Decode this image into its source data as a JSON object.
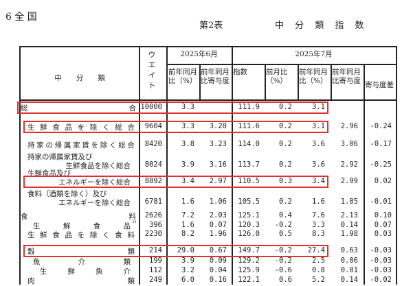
{
  "section": "6 全 国",
  "table_no": "第2表",
  "table_title": "中 分 類 指 数",
  "headers": {
    "category": "中　　分　　類",
    "weight": "ウエイト",
    "june": "2025年6月",
    "july": "2025年7月",
    "june_yoy": "前年同月比（%）",
    "june_contrib": "前年同月比寄与度",
    "index": "指数",
    "mom": "前月比（%）",
    "yoy": "前年同月比（%）",
    "contrib": "前年同月比寄与度",
    "diff": "寄与度差"
  },
  "rows": [
    {
      "label": [
        "総合"
      ],
      "style": "j0",
      "values": [
        "10000",
        "3.3",
        "",
        "111.9",
        "0.2",
        "3.1",
        "",
        ""
      ],
      "highlight": true
    },
    {
      "label": [
        "生鮮食品を除く総合"
      ],
      "style": "j1",
      "values": [
        "9604",
        "3.3",
        "3.20",
        "111.6",
        "0.2",
        "3.1",
        "2.96",
        "-0.24"
      ],
      "highlight": true
    },
    {
      "label": [
        "持家の帰属家賃を除く総合"
      ],
      "style": "j1",
      "values": [
        "8420",
        "3.8",
        "3.23",
        "114.0",
        "0.2",
        "3.6",
        "3.06",
        "-0.17"
      ]
    },
    {
      "label": [
        "持家の帰属家賃及び",
        "生鮮食品を除く総合"
      ],
      "style": "two",
      "values": [
        "8024",
        "3.9",
        "3.16",
        "113.7",
        "0.2",
        "3.6",
        "2.92",
        "-0.25"
      ]
    },
    {
      "label": [
        "生鮮食品及び",
        "エネルギーを除く総合"
      ],
      "style": "two",
      "values": [
        "8892",
        "3.4",
        "2.97",
        "110.5",
        "0.3",
        "3.4",
        "2.99",
        "0.02"
      ],
      "highlight": true
    },
    {
      "label": [
        "食料（酒類を除く）及び",
        "エネルギーを除く総合"
      ],
      "style": "two",
      "values": [
        "6781",
        "1.6",
        "1.06",
        "105.5",
        "0.2",
        "1.6",
        "1.05",
        "-0.01"
      ]
    },
    {
      "label": [
        "食料"
      ],
      "style": "j0",
      "values": [
        "2626",
        "7.2",
        "2.03",
        "125.1",
        "0.4",
        "7.6",
        "2.13",
        "0.10"
      ]
    },
    {
      "label": [
        "生鮮食品"
      ],
      "style": "j2",
      "note": "1)",
      "values": [
        "396",
        "1.6",
        "0.07",
        "120.3",
        "-0.2",
        "3.3",
        "0.14",
        "0.07"
      ]
    },
    {
      "label": [
        "生鮮食品を除く食料"
      ],
      "style": "j1",
      "values": [
        "2230",
        "8.2",
        "1.96",
        "126.0",
        "0.5",
        "8.3",
        "1.98",
        "0.03"
      ]
    },
    {
      "label": [
        "穀類"
      ],
      "style": "j1",
      "values": [
        "214",
        "29.0",
        "0.67",
        "149.7",
        "-0.2",
        "27.4",
        "0.63",
        "-0.03"
      ],
      "highlight": true
    },
    {
      "label": [
        "魚介類"
      ],
      "style": "j2",
      "values": [
        "199",
        "3.9",
        "0.09",
        "129.2",
        "-0.2",
        "2.5",
        "0.06",
        "-0.03"
      ]
    },
    {
      "label": [
        "生鮮魚介"
      ],
      "style": "j3",
      "values": [
        "112",
        "3.2",
        "0.04",
        "125.9",
        "-0.6",
        "0.8",
        "0.01",
        "-0.03"
      ]
    },
    {
      "label": [
        "肉類"
      ],
      "style": "j1",
      "values": [
        "249",
        "6.0",
        "0.16",
        "122.1",
        "0.6",
        "5.2",
        "0.14",
        "-0.02"
      ]
    }
  ],
  "highlight_color": "#e03030"
}
